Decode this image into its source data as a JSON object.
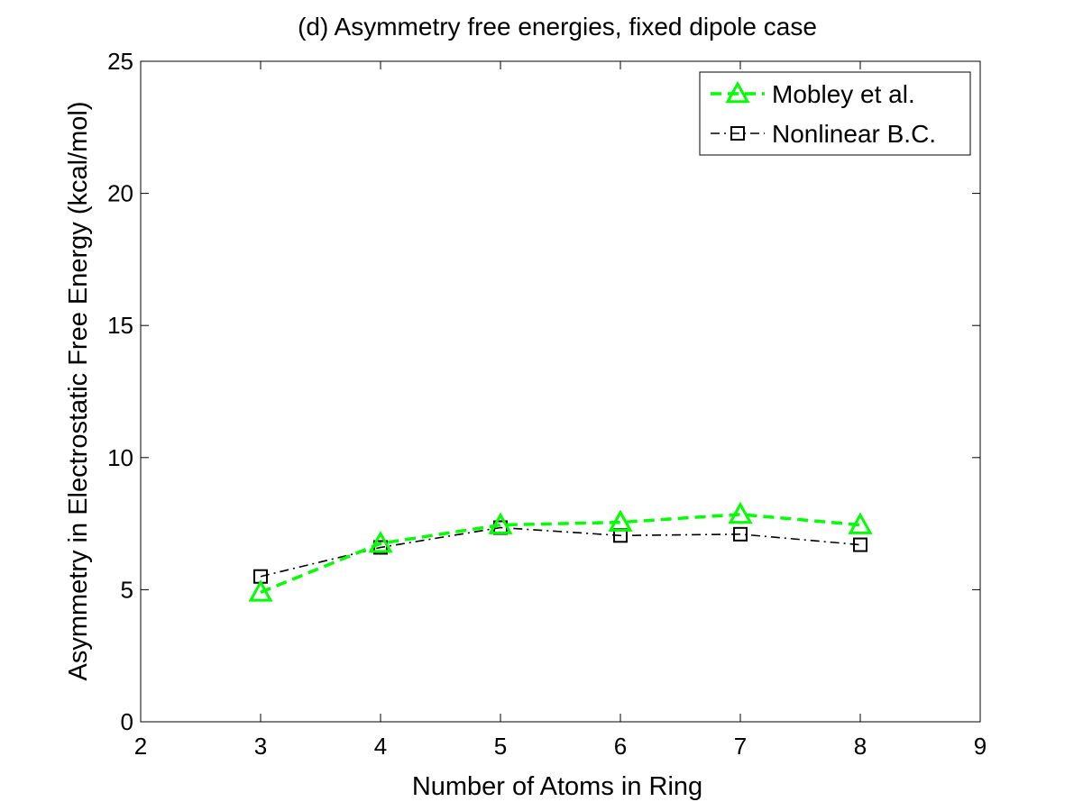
{
  "chart_data": {
    "type": "line",
    "title": "(d) Asymmetry free energies, fixed dipole case",
    "xlabel": "Number of Atoms in Ring",
    "ylabel": "Asymmetry in Electrostatic Free Energy (kcal/mol)",
    "xlim": [
      2,
      9
    ],
    "ylim": [
      0,
      25
    ],
    "xticks": [
      2,
      3,
      4,
      5,
      6,
      7,
      8,
      9
    ],
    "yticks": [
      0,
      5,
      10,
      15,
      20,
      25
    ],
    "grid": false,
    "legend_position": "top-right",
    "x": [
      3,
      4,
      5,
      6,
      7,
      8
    ],
    "series": [
      {
        "name": "Mobley et al.",
        "values": [
          4.9,
          6.75,
          7.45,
          7.55,
          7.85,
          7.45
        ],
        "color": "#00ff00",
        "line_style": "dashed",
        "marker": "triangle"
      },
      {
        "name": "Nonlinear B.C.",
        "values": [
          5.5,
          6.6,
          7.35,
          7.05,
          7.1,
          6.7
        ],
        "color": "#000000",
        "line_style": "dash-dot",
        "marker": "square"
      }
    ]
  }
}
